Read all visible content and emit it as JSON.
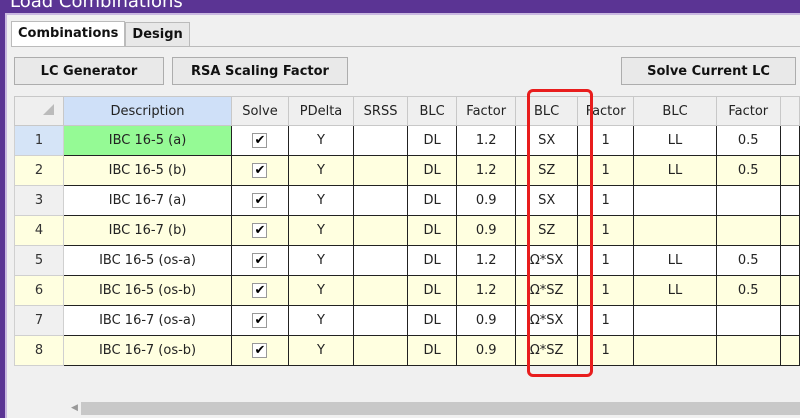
{
  "window": {
    "title": "Load Combinations"
  },
  "tabs": [
    {
      "label": "Combinations",
      "active": true
    },
    {
      "label": "Design",
      "active": false
    }
  ],
  "toolbar": {
    "lc_generator": "LC Generator",
    "rsa_scaling": "RSA Scaling Factor",
    "solve_current": "Solve Current LC"
  },
  "table": {
    "headers": [
      "Description",
      "Solve",
      "PDelta",
      "SRSS",
      "BLC",
      "Factor",
      "BLC",
      "Factor",
      "BLC",
      "Factor"
    ],
    "rows": [
      {
        "n": "1",
        "desc": "IBC 16-5 (a)",
        "solve": true,
        "pdelta": "Y",
        "srss": "",
        "blc1": "DL",
        "f1": "1.2",
        "blc2": "SX",
        "f2": "1",
        "blc3": "LL",
        "f3": "0.5"
      },
      {
        "n": "2",
        "desc": "IBC 16-5 (b)",
        "solve": true,
        "pdelta": "Y",
        "srss": "",
        "blc1": "DL",
        "f1": "1.2",
        "blc2": "SZ",
        "f2": "1",
        "blc3": "LL",
        "f3": "0.5"
      },
      {
        "n": "3",
        "desc": "IBC 16-7 (a)",
        "solve": true,
        "pdelta": "Y",
        "srss": "",
        "blc1": "DL",
        "f1": "0.9",
        "blc2": "SX",
        "f2": "1",
        "blc3": "",
        "f3": ""
      },
      {
        "n": "4",
        "desc": "IBC 16-7 (b)",
        "solve": true,
        "pdelta": "Y",
        "srss": "",
        "blc1": "DL",
        "f1": "0.9",
        "blc2": "SZ",
        "f2": "1",
        "blc3": "",
        "f3": ""
      },
      {
        "n": "5",
        "desc": "IBC 16-5 (os-a)",
        "solve": true,
        "pdelta": "Y",
        "srss": "",
        "blc1": "DL",
        "f1": "1.2",
        "blc2": "Ω*SX",
        "f2": "1",
        "blc3": "LL",
        "f3": "0.5"
      },
      {
        "n": "6",
        "desc": "IBC 16-5 (os-b)",
        "solve": true,
        "pdelta": "Y",
        "srss": "",
        "blc1": "DL",
        "f1": "1.2",
        "blc2": "Ω*SZ",
        "f2": "1",
        "blc3": "LL",
        "f3": "0.5"
      },
      {
        "n": "7",
        "desc": "IBC 16-7 (os-a)",
        "solve": true,
        "pdelta": "Y",
        "srss": "",
        "blc1": "DL",
        "f1": "0.9",
        "blc2": "Ω*SX",
        "f2": "1",
        "blc3": "",
        "f3": ""
      },
      {
        "n": "8",
        "desc": "IBC 16-7 (os-b)",
        "solve": true,
        "pdelta": "Y",
        "srss": "",
        "blc1": "DL",
        "f1": "0.9",
        "blc2": "Ω*SZ",
        "f2": "1",
        "blc3": "",
        "f3": ""
      }
    ],
    "check_mark": "✔"
  },
  "colors": {
    "title_bar": "#5b3494",
    "selected_desc": "#95fa95",
    "alt_row": "#ffffe0",
    "highlight": "#e81d1d"
  }
}
